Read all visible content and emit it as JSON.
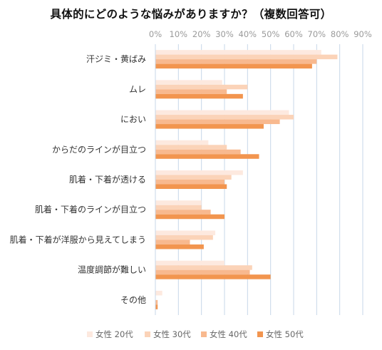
{
  "chart_data": {
    "type": "bar",
    "orientation": "horizontal",
    "title": "具体的にどのような悩みがありますか？（複数回答可）",
    "xlim": [
      0,
      90
    ],
    "x_ticks": [
      "0%",
      "10%",
      "20%",
      "30%",
      "40%",
      "50%",
      "60%",
      "70%",
      "80%",
      "90%"
    ],
    "x_tick_position": "top",
    "grid": true,
    "legend_position": "bottom",
    "categories": [
      "汗ジミ・黄ばみ",
      "ムレ",
      "におい",
      "からだのラインが目立つ",
      "肌着・下着が透ける",
      "肌着・下着のラインが目立つ",
      "肌着・下着が洋服から見えてしまう",
      "温度調節が難しい",
      "その他"
    ],
    "series": [
      {
        "name": "女性 20代",
        "color": "#fde9df",
        "values": [
          72,
          29,
          58,
          23,
          38,
          20,
          26,
          30,
          3
        ]
      },
      {
        "name": "女性 30代",
        "color": "#fbd3b8",
        "values": [
          79,
          40,
          60,
          31,
          33,
          20,
          25,
          42,
          0
        ]
      },
      {
        "name": "女性 40代",
        "color": "#f8b98f",
        "values": [
          70,
          31,
          54,
          37,
          30,
          24,
          15,
          41,
          1
        ]
      },
      {
        "name": "女性 50代",
        "color": "#f2954f",
        "values": [
          68,
          38,
          47,
          45,
          31,
          30,
          21,
          50,
          1
        ]
      }
    ]
  }
}
